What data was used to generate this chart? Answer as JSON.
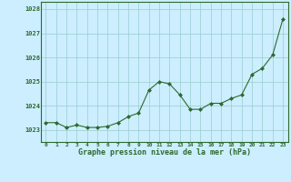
{
  "x": [
    0,
    1,
    2,
    3,
    4,
    5,
    6,
    7,
    8,
    9,
    10,
    11,
    12,
    13,
    14,
    15,
    16,
    17,
    18,
    19,
    20,
    21,
    22,
    23
  ],
  "y": [
    1023.3,
    1023.3,
    1023.1,
    1023.2,
    1023.1,
    1023.1,
    1023.15,
    1023.3,
    1023.55,
    1023.7,
    1024.65,
    1025.0,
    1024.9,
    1024.45,
    1023.85,
    1023.85,
    1024.1,
    1024.1,
    1024.3,
    1024.45,
    1025.3,
    1025.55,
    1026.1,
    1027.6
  ],
  "ylim": [
    1022.5,
    1028.3
  ],
  "yticks": [
    1023,
    1024,
    1025,
    1026,
    1027,
    1028
  ],
  "xticks": [
    0,
    1,
    2,
    3,
    4,
    5,
    6,
    7,
    8,
    9,
    10,
    11,
    12,
    13,
    14,
    15,
    16,
    17,
    18,
    19,
    20,
    21,
    22,
    23
  ],
  "line_color": "#2d6a2d",
  "marker_color": "#2d6a2d",
  "bg_color": "#cceeff",
  "grid_color": "#99cccc",
  "xlabel": "Graphe pression niveau de la mer (hPa)",
  "xlabel_color": "#2d6a2d",
  "tick_color": "#2d6a2d",
  "axis_color": "#2d6a2d",
  "xlim": [
    -0.5,
    23.5
  ]
}
